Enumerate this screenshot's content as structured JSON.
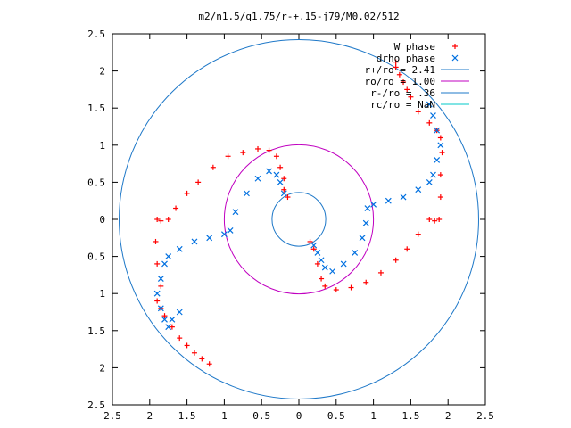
{
  "chart_data": {
    "type": "scatter",
    "title": "m2/n1.5/q1.75/r-+.15-j79/M0.02/512",
    "xlabel": "",
    "ylabel": "",
    "xlim": [
      -2.5,
      2.5
    ],
    "ylim": [
      -2.5,
      2.5
    ],
    "x_ticks": [
      -2.5,
      -2,
      -1.5,
      -1,
      -0.5,
      0,
      0.5,
      1,
      1.5,
      2,
      2.5
    ],
    "y_ticks": [
      -2.5,
      -2,
      -1.5,
      -1,
      -0.5,
      0,
      0.5,
      1,
      1.5,
      2,
      2.5
    ],
    "x_tick_labels": [
      "2.5",
      "2",
      "1.5",
      "1",
      "0.5",
      "0",
      "0.5",
      "1",
      "1.5",
      "2",
      "2.5"
    ],
    "y_tick_labels": [
      "2.5",
      "2",
      "1.5",
      "1",
      "0.5",
      "0",
      "0.5",
      "1",
      "1.5",
      "2",
      "2.5"
    ],
    "grid": false,
    "legend_position": "top-right",
    "colors": {
      "w_phase": "#ff0000",
      "drho_phase": "#0070e0",
      "r_plus": "#1e78c8",
      "ro": "#c000c0",
      "r_minus": "#1e78c8",
      "rc": "#00c8c8"
    },
    "series": [
      {
        "name": "W phase",
        "marker": "plus",
        "color": "#ff0000",
        "points": [
          [
            0.15,
            -0.3
          ],
          [
            0.2,
            -0.4
          ],
          [
            0.25,
            -0.6
          ],
          [
            0.3,
            -0.8
          ],
          [
            0.35,
            -0.9
          ],
          [
            0.5,
            -0.95
          ],
          [
            0.7,
            -0.92
          ],
          [
            0.9,
            -0.85
          ],
          [
            1.1,
            -0.72
          ],
          [
            1.3,
            -0.55
          ],
          [
            1.45,
            -0.4
          ],
          [
            1.6,
            -0.2
          ],
          [
            1.75,
            0.0
          ],
          [
            1.82,
            -0.02
          ],
          [
            1.88,
            0.0
          ],
          [
            1.9,
            0.3
          ],
          [
            1.9,
            0.6
          ],
          [
            1.92,
            0.9
          ],
          [
            1.9,
            1.1
          ],
          [
            1.85,
            1.2
          ],
          [
            1.75,
            1.3
          ],
          [
            1.6,
            1.45
          ],
          [
            1.5,
            1.65
          ],
          [
            1.45,
            1.75
          ],
          [
            1.4,
            1.85
          ],
          [
            1.35,
            1.95
          ],
          [
            1.3,
            2.05
          ],
          [
            1.3,
            2.12
          ],
          [
            -0.15,
            0.3
          ],
          [
            -0.2,
            0.4
          ],
          [
            -0.2,
            0.55
          ],
          [
            -0.25,
            0.7
          ],
          [
            -0.3,
            0.85
          ],
          [
            -0.4,
            0.93
          ],
          [
            -0.55,
            0.95
          ],
          [
            -0.75,
            0.9
          ],
          [
            -0.95,
            0.85
          ],
          [
            -1.15,
            0.7
          ],
          [
            -1.35,
            0.5
          ],
          [
            -1.5,
            0.35
          ],
          [
            -1.65,
            0.15
          ],
          [
            -1.75,
            0.0
          ],
          [
            -1.85,
            -0.02
          ],
          [
            -1.9,
            0.0
          ],
          [
            -1.92,
            -0.3
          ],
          [
            -1.9,
            -0.6
          ],
          [
            -1.85,
            -0.9
          ],
          [
            -1.9,
            -1.1
          ],
          [
            -1.85,
            -1.2
          ],
          [
            -1.8,
            -1.3
          ],
          [
            -1.7,
            -1.45
          ],
          [
            -1.6,
            -1.6
          ],
          [
            -1.5,
            -1.7
          ],
          [
            -1.4,
            -1.8
          ],
          [
            -1.3,
            -1.88
          ],
          [
            -1.2,
            -1.95
          ]
        ]
      },
      {
        "name": "drho phase",
        "marker": "cross",
        "color": "#0070e0",
        "points": [
          [
            0.2,
            -0.35
          ],
          [
            0.25,
            -0.45
          ],
          [
            0.3,
            -0.55
          ],
          [
            0.35,
            -0.65
          ],
          [
            0.45,
            -0.7
          ],
          [
            0.6,
            -0.6
          ],
          [
            0.75,
            -0.45
          ],
          [
            0.85,
            -0.25
          ],
          [
            0.9,
            -0.05
          ],
          [
            0.92,
            0.15
          ],
          [
            1.0,
            0.2
          ],
          [
            1.2,
            0.25
          ],
          [
            1.4,
            0.3
          ],
          [
            1.6,
            0.4
          ],
          [
            1.75,
            0.5
          ],
          [
            1.8,
            0.6
          ],
          [
            1.85,
            0.8
          ],
          [
            1.9,
            1.0
          ],
          [
            1.85,
            1.2
          ],
          [
            1.8,
            1.4
          ],
          [
            1.75,
            1.55
          ],
          [
            -0.2,
            0.35
          ],
          [
            -0.25,
            0.5
          ],
          [
            -0.3,
            0.6
          ],
          [
            -0.4,
            0.65
          ],
          [
            -0.55,
            0.55
          ],
          [
            -0.7,
            0.35
          ],
          [
            -0.85,
            0.1
          ],
          [
            -0.92,
            -0.15
          ],
          [
            -1.0,
            -0.2
          ],
          [
            -1.2,
            -0.25
          ],
          [
            -1.4,
            -0.3
          ],
          [
            -1.6,
            -0.4
          ],
          [
            -1.75,
            -0.5
          ],
          [
            -1.8,
            -0.6
          ],
          [
            -1.85,
            -0.8
          ],
          [
            -1.9,
            -1.0
          ],
          [
            -1.85,
            -1.2
          ],
          [
            -1.8,
            -1.35
          ],
          [
            -1.75,
            -1.45
          ],
          [
            -1.7,
            -1.35
          ],
          [
            -1.6,
            -1.25
          ]
        ]
      },
      {
        "name": "r+/ro = 2.41",
        "type": "circle",
        "radius": 2.41,
        "color": "#1e78c8"
      },
      {
        "name": "ro/ro = 1.00",
        "type": "circle",
        "radius": 1.0,
        "color": "#c000c0"
      },
      {
        "name": "r-/ro = .36",
        "type": "circle",
        "radius": 0.36,
        "color": "#1e78c8"
      },
      {
        "name": "rc/ro = NaN",
        "type": "circle",
        "radius": null,
        "color": "#00c8c8"
      }
    ]
  }
}
